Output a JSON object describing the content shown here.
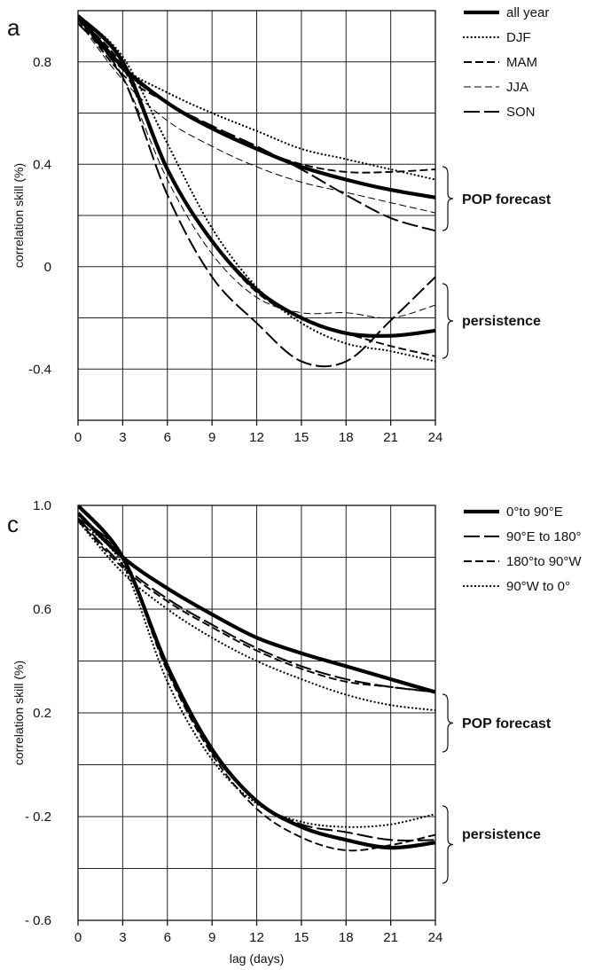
{
  "chart_data": [
    {
      "panel": "a",
      "type": "line",
      "title": "",
      "xlabel": "",
      "ylabel": "correlation skill (%)",
      "xlim": [
        0,
        24
      ],
      "ylim": [
        -0.6,
        1.0
      ],
      "xticks": [
        0,
        3,
        6,
        9,
        12,
        15,
        18,
        21,
        24
      ],
      "yticks": [
        0.8,
        0.4,
        0,
        -0.4
      ],
      "ytick_labels": [
        "0.8",
        "0.4",
        "0",
        "-0.4"
      ],
      "grid": true,
      "legend_position": "right",
      "x": [
        0,
        3,
        6,
        9,
        12,
        15,
        18,
        21,
        24
      ],
      "series": [
        {
          "name": "all year",
          "style": "solid-thick",
          "group": "POP forecast",
          "values": [
            0.98,
            0.78,
            0.64,
            0.54,
            0.46,
            0.39,
            0.34,
            0.3,
            0.27
          ]
        },
        {
          "name": "DJF",
          "style": "dotted",
          "group": "POP forecast",
          "values": [
            0.98,
            0.78,
            0.68,
            0.6,
            0.53,
            0.46,
            0.42,
            0.38,
            0.34
          ]
        },
        {
          "name": "MAM",
          "style": "dashed-medium",
          "group": "POP forecast",
          "values": [
            0.97,
            0.75,
            0.64,
            0.54,
            0.46,
            0.4,
            0.37,
            0.37,
            0.38
          ]
        },
        {
          "name": "JJA",
          "style": "dashed-thin",
          "group": "POP forecast",
          "values": [
            0.96,
            0.73,
            0.57,
            0.47,
            0.39,
            0.33,
            0.29,
            0.25,
            0.21
          ]
        },
        {
          "name": "SON",
          "style": "dashed-long",
          "group": "POP forecast",
          "values": [
            0.97,
            0.77,
            0.64,
            0.55,
            0.47,
            0.38,
            0.28,
            0.19,
            0.14
          ]
        },
        {
          "name": "all year",
          "style": "solid-thick",
          "group": "persistence",
          "values": [
            0.98,
            0.8,
            0.38,
            0.1,
            -0.09,
            -0.2,
            -0.26,
            -0.27,
            -0.25
          ]
        },
        {
          "name": "DJF",
          "style": "dotted",
          "group": "persistence",
          "values": [
            0.98,
            0.82,
            0.48,
            0.15,
            -0.08,
            -0.22,
            -0.3,
            -0.33,
            -0.37
          ]
        },
        {
          "name": "MAM",
          "style": "dashed-medium",
          "group": "persistence",
          "values": [
            0.97,
            0.78,
            0.38,
            0.1,
            -0.1,
            -0.2,
            -0.26,
            -0.31,
            -0.35
          ]
        },
        {
          "name": "JJA",
          "style": "dashed-thin",
          "group": "persistence",
          "values": [
            0.96,
            0.74,
            0.34,
            0.05,
            -0.12,
            -0.18,
            -0.18,
            -0.2,
            -0.15
          ]
        },
        {
          "name": "SON",
          "style": "dashed-long",
          "group": "persistence",
          "values": [
            0.95,
            0.74,
            0.28,
            -0.04,
            -0.22,
            -0.37,
            -0.37,
            -0.21,
            -0.04
          ]
        }
      ],
      "legend": [
        {
          "label": "all year",
          "style": "solid-thick"
        },
        {
          "label": "DJF",
          "style": "dotted"
        },
        {
          "label": "MAM",
          "style": "dashed-medium"
        },
        {
          "label": "JJA",
          "style": "dashed-thin"
        },
        {
          "label": "SON",
          "style": "dashed-long"
        }
      ],
      "annotations": [
        "POP forecast",
        "persistence"
      ]
    },
    {
      "panel": "c",
      "type": "line",
      "title": "",
      "xlabel": "lag (days)",
      "ylabel": "correlation skill (%)",
      "xlim": [
        0,
        24
      ],
      "ylim": [
        -0.6,
        1.0
      ],
      "xticks": [
        0,
        3,
        6,
        9,
        12,
        15,
        18,
        21,
        24
      ],
      "yticks": [
        1.0,
        0.6,
        0.2,
        -0.2,
        -0.6
      ],
      "ytick_labels": [
        "1.0",
        "0.6",
        "0.2",
        "- 0.2",
        "- 0.6"
      ],
      "grid": true,
      "legend_position": "right",
      "x": [
        0,
        3,
        6,
        9,
        12,
        15,
        18,
        21,
        24
      ],
      "series": [
        {
          "name": "0° to 90°E",
          "style": "solid-thick",
          "group": "POP forecast",
          "values": [
            0.97,
            0.8,
            0.68,
            0.58,
            0.49,
            0.43,
            0.38,
            0.33,
            0.28
          ]
        },
        {
          "name": "90°E to 180°",
          "style": "dashed-long",
          "group": "POP forecast",
          "values": [
            0.95,
            0.77,
            0.64,
            0.54,
            0.45,
            0.38,
            0.33,
            0.3,
            0.28
          ]
        },
        {
          "name": "180° to 90°W",
          "style": "dashed-medium",
          "group": "POP forecast",
          "values": [
            0.94,
            0.76,
            0.63,
            0.53,
            0.44,
            0.37,
            0.32,
            0.3,
            0.28
          ]
        },
        {
          "name": "90°W to 0°",
          "style": "dotted",
          "group": "POP forecast",
          "values": [
            0.94,
            0.74,
            0.6,
            0.49,
            0.4,
            0.33,
            0.27,
            0.23,
            0.21
          ]
        },
        {
          "name": "0° to 90°E",
          "style": "solid-thick",
          "group": "persistence",
          "values": [
            1.0,
            0.8,
            0.38,
            0.06,
            -0.14,
            -0.24,
            -0.29,
            -0.32,
            -0.3
          ]
        },
        {
          "name": "90°E to 180°",
          "style": "dashed-long",
          "group": "persistence",
          "values": [
            0.95,
            0.8,
            0.37,
            0.05,
            -0.14,
            -0.23,
            -0.26,
            -0.29,
            -0.29
          ]
        },
        {
          "name": "180° to 90°W",
          "style": "dashed-medium",
          "group": "persistence",
          "values": [
            0.95,
            0.79,
            0.36,
            0.04,
            -0.17,
            -0.28,
            -0.33,
            -0.31,
            -0.27
          ]
        },
        {
          "name": "90°W to 0°",
          "style": "dotted",
          "group": "persistence",
          "values": [
            0.94,
            0.77,
            0.32,
            0.02,
            -0.15,
            -0.22,
            -0.24,
            -0.23,
            -0.19
          ]
        }
      ],
      "legend": [
        {
          "label": "0°to 90°E",
          "style": "solid-thick"
        },
        {
          "label": "90°E to 180°",
          "style": "dashed-long"
        },
        {
          "label": "180°to 90°W",
          "style": "dashed-medium"
        },
        {
          "label": "90°W to 0°",
          "style": "dotted"
        }
      ],
      "annotations": [
        "POP forecast",
        "persistence"
      ]
    }
  ]
}
